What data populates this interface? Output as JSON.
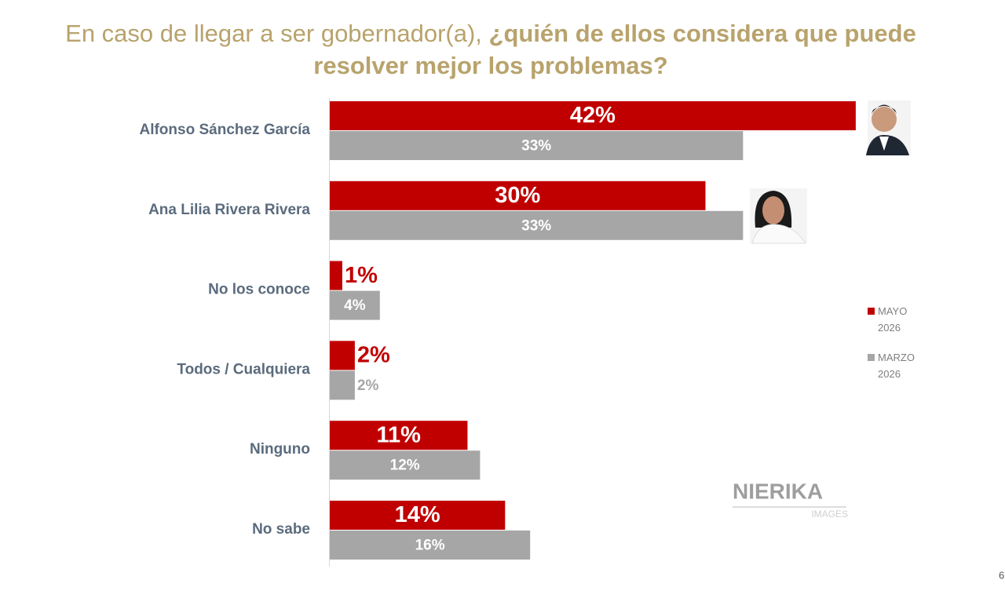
{
  "chart_data": {
    "type": "grouped-hbar",
    "title_parts": [
      "En caso de llegar a ser gobernador(a), ",
      "¿quién de ellos considera que puede resolver mejor los problemas?"
    ],
    "categories": [
      "Alfonso Sánchez García",
      "Ana Lilia Rivera Rivera",
      "No los conoce",
      "Todos / Cualquiera",
      "Ninguno",
      "No sabe"
    ],
    "series": [
      {
        "name": "MAYO 2026",
        "color": "#c00000",
        "values": [
          42,
          30,
          1,
          2,
          11,
          14
        ],
        "value_labels": [
          "42%",
          "30%",
          "1%",
          "2%",
          "11%",
          "14%"
        ]
      },
      {
        "name": "MARZO 2026",
        "color": "#a6a6a6",
        "values": [
          33,
          33,
          4,
          2,
          12,
          16
        ],
        "value_labels": [
          "33%",
          "33%",
          "4%",
          "2%",
          "12%",
          "16%"
        ]
      }
    ],
    "legend": "right",
    "watermark": [
      "NIERIKA",
      "IMAGES"
    ],
    "page_number": "6"
  }
}
